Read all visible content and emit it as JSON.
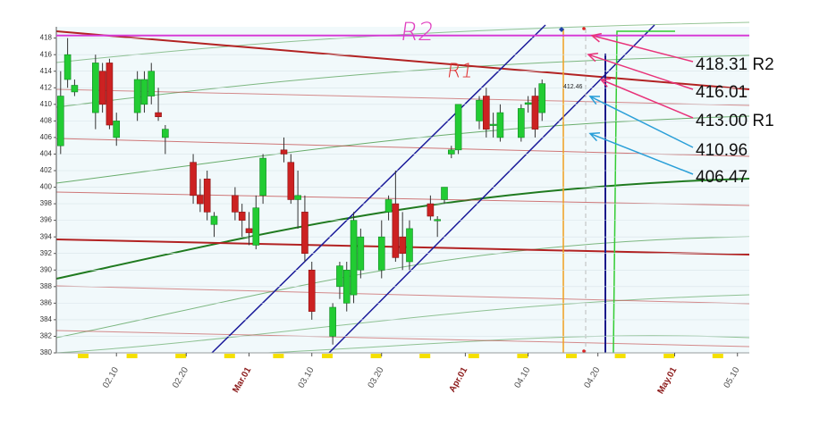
{
  "chart_data": {
    "type": "candlestick",
    "up_color": "#22cc33",
    "down_color": "#cc2222",
    "x": [
      33,
      34,
      35,
      38,
      39,
      40,
      41,
      44,
      45,
      46,
      47,
      48,
      52,
      53,
      54,
      55,
      58,
      59,
      60,
      61,
      62,
      65,
      66,
      67,
      68,
      69,
      72,
      73,
      74,
      75,
      76,
      79,
      80,
      81,
      82,
      83,
      86,
      87,
      88,
      89,
      90,
      93,
      94,
      95,
      96,
      99,
      100,
      101,
      102
    ],
    "open": [
      405,
      413,
      411.5,
      409,
      414,
      415,
      406,
      409,
      410,
      411,
      409,
      406,
      403,
      399,
      401,
      395.5,
      399,
      397,
      395,
      393,
      399,
      404.5,
      403,
      398.5,
      397,
      390,
      382,
      388,
      386,
      387,
      390,
      390,
      397,
      398,
      394,
      391,
      398,
      396,
      398.5,
      404,
      404.5,
      408,
      411,
      407.5,
      406,
      406,
      410,
      411,
      409
    ],
    "high": [
      414,
      418,
      413,
      416,
      415,
      415.5,
      409,
      414,
      414,
      415,
      412,
      407.5,
      404,
      401,
      402,
      397,
      400,
      398,
      397,
      399,
      404,
      406,
      404,
      402,
      399,
      391,
      386,
      391,
      391,
      397,
      395,
      396,
      399,
      402,
      397,
      396,
      399,
      396.5,
      400,
      405,
      410,
      411,
      412,
      409,
      410,
      410,
      411,
      412,
      413
    ],
    "low": [
      404,
      412,
      411,
      407,
      409,
      407,
      405,
      408,
      409,
      410,
      408,
      404,
      398,
      397,
      396,
      394,
      396,
      394,
      393,
      392.5,
      398,
      403,
      398,
      395,
      391,
      384,
      381,
      386.5,
      385,
      386,
      389,
      389,
      396,
      391,
      390,
      390,
      396,
      394,
      398,
      403.5,
      404,
      407,
      406,
      406,
      405.5,
      405.5,
      409,
      406,
      408
    ],
    "close": [
      411,
      416,
      412.3,
      415,
      410,
      407.5,
      408,
      413,
      413,
      414,
      408.5,
      407,
      399,
      398,
      397,
      396.5,
      397,
      396,
      394.5,
      397.5,
      403.5,
      404,
      398.5,
      399,
      392,
      385,
      385.5,
      390.5,
      390,
      396,
      394,
      394,
      398.5,
      391.5,
      392,
      395,
      396.5,
      396.1,
      400,
      404.5,
      410,
      410.5,
      407,
      407.6,
      409,
      409.5,
      410.2,
      407,
      412.5
    ],
    "ylim": [
      380,
      418.5
    ],
    "yticks": [
      380,
      382,
      384,
      386,
      388,
      390,
      392,
      394,
      396,
      398,
      400,
      402,
      404,
      406,
      408,
      410,
      412,
      414,
      416,
      418
    ],
    "xlim": [
      32,
      131.7
    ],
    "xticks": [
      {
        "value": 41,
        "label": "02.10",
        "color": "#555555"
      },
      {
        "value": 51,
        "label": "02.20",
        "color": "#555555"
      },
      {
        "value": 60,
        "label": "Mar.01",
        "color": "#8b1a1a"
      },
      {
        "value": 69,
        "label": "03.10",
        "color": "#555555"
      },
      {
        "value": 79,
        "label": "03.20",
        "color": "#555555"
      },
      {
        "value": 91,
        "label": "Apr.01",
        "color": "#8b1a1a"
      },
      {
        "value": 100,
        "label": "04.10",
        "color": "#555555"
      },
      {
        "value": 110,
        "label": "04.20",
        "color": "#555555"
      },
      {
        "value": 121,
        "label": "May.01",
        "color": "#8b1a1a"
      },
      {
        "value": 130,
        "label": "05.10",
        "color": "#555555"
      }
    ],
    "last_price": 412.46,
    "annotations": [
      {
        "text": "R2",
        "color": "#e040c0"
      },
      {
        "text": "R1",
        "color": "#e03030"
      }
    ],
    "levels": [
      {
        "value": 418.31,
        "label": "418.31 R2",
        "color": "#e8337a"
      },
      {
        "value": 416.01,
        "label": "416.01",
        "color": "#e8337a"
      },
      {
        "value": 413,
        "label": "413.00 R1",
        "color": "#e8337a"
      },
      {
        "value": 410.96,
        "label": "410.96",
        "color": "#2a9fd8"
      },
      {
        "value": 406.47,
        "label": "406.47",
        "color": "#2a9fd8"
      }
    ]
  }
}
